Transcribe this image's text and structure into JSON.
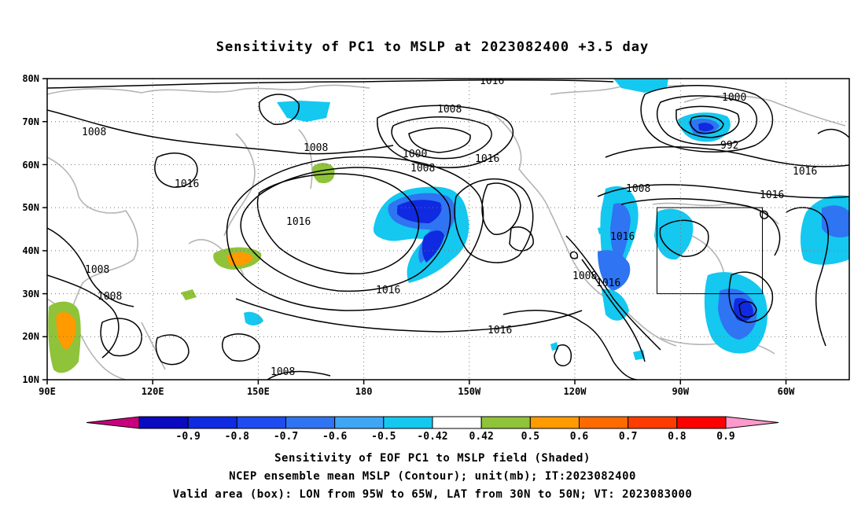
{
  "title": "Sensitivity of PC1 to MSLP at 2023082400 +3.5 day",
  "lat_labels": [
    "80N",
    "70N",
    "60N",
    "50N",
    "40N",
    "30N",
    "20N",
    "10N"
  ],
  "lon_labels": [
    "90E",
    "120E",
    "150E",
    "180",
    "150W",
    "120W",
    "90W",
    "60W"
  ],
  "contour_labels": [
    {
      "text": "1016"
    },
    {
      "text": "1008"
    },
    {
      "text": "1000"
    },
    {
      "text": "992"
    },
    {
      "text": "1008"
    },
    {
      "text": "1008"
    },
    {
      "text": "1016"
    },
    {
      "text": "1016"
    },
    {
      "text": "1000"
    },
    {
      "text": "1008"
    },
    {
      "text": "1016"
    },
    {
      "text": "1016"
    },
    {
      "text": "1008"
    },
    {
      "text": "1016"
    },
    {
      "text": "1008"
    },
    {
      "text": "1016"
    },
    {
      "text": "1016"
    },
    {
      "text": "1008"
    },
    {
      "text": "1008"
    },
    {
      "text": "1016"
    },
    {
      "text": "1016"
    },
    {
      "text": "1008"
    }
  ],
  "colorbar": {
    "labels": [
      "-0.9",
      "-0.8",
      "-0.7",
      "-0.6",
      "-0.5",
      "-0.42",
      "0.42",
      "0.5",
      "0.6",
      "0.7",
      "0.8",
      "0.9"
    ],
    "colors": [
      "#c8007e",
      "#0a0ac0",
      "#0f2ae0",
      "#1e4cf0",
      "#2f74f2",
      "#3ea6f5",
      "#14c8f0",
      "#ffffff",
      "#8fc33a",
      "#ff9a00",
      "#ff6a00",
      "#ff3c00",
      "#ff0000",
      "#ff99cc"
    ]
  },
  "box": {
    "lon_from": "95W",
    "lon_to": "65W",
    "lat_from": "30N",
    "lat_to": "50N"
  },
  "captions": [
    "Sensitivity of EOF PC1 to MSLP field (Shaded)",
    "NCEP ensemble mean MSLP (Contour); unit(mb); IT:2023082400",
    "Valid area (box): LON from 95W to 65W, LAT from 30N to 50N; VT: 2023083000"
  ]
}
